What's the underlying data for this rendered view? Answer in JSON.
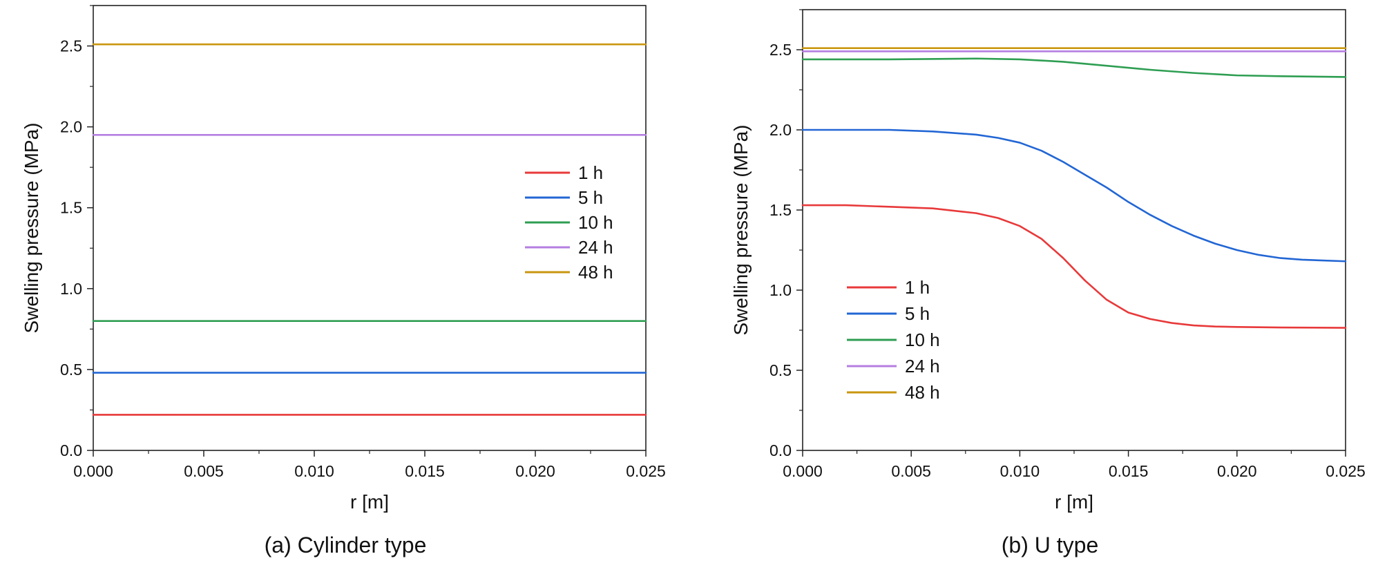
{
  "chart_data": [
    {
      "id": "a",
      "type": "line",
      "caption": "(a) Cylinder type",
      "xlabel": "r [m]",
      "ylabel": "Swelling pressure (MPa)",
      "xlim": [
        0.0,
        0.025
      ],
      "ylim": [
        0.0,
        2.75
      ],
      "xticks": [
        "0.000",
        "0.005",
        "0.010",
        "0.015",
        "0.020",
        "0.025"
      ],
      "yticks": [
        "0.0",
        "0.5",
        "1.0",
        "1.5",
        "2.0",
        "2.5"
      ],
      "legend_position": "center-right",
      "series": [
        {
          "name": "1 h",
          "color": "#e8393a",
          "x": [
            0.0,
            0.025
          ],
          "y": [
            0.22,
            0.22
          ]
        },
        {
          "name": "5 h",
          "color": "#2266d4",
          "x": [
            0.0,
            0.025
          ],
          "y": [
            0.48,
            0.48
          ]
        },
        {
          "name": "10 h",
          "color": "#2e9e52",
          "x": [
            0.0,
            0.025
          ],
          "y": [
            0.8,
            0.8
          ]
        },
        {
          "name": "24 h",
          "color": "#b57ee0",
          "x": [
            0.0,
            0.025
          ],
          "y": [
            1.95,
            1.95
          ]
        },
        {
          "name": "48 h",
          "color": "#c9960f",
          "x": [
            0.0,
            0.025
          ],
          "y": [
            2.51,
            2.51
          ]
        }
      ]
    },
    {
      "id": "b",
      "type": "line",
      "caption": "(b) U type",
      "xlabel": "r [m]",
      "ylabel": "Swelling pressure (MPa)",
      "xlim": [
        0.0,
        0.025
      ],
      "ylim": [
        0.0,
        2.75
      ],
      "xticks": [
        "0.000",
        "0.005",
        "0.010",
        "0.015",
        "0.020",
        "0.025"
      ],
      "yticks": [
        "0.0",
        "0.5",
        "1.0",
        "1.5",
        "2.0",
        "2.5"
      ],
      "legend_position": "bottom-left",
      "series": [
        {
          "name": "1 h",
          "color": "#e8393a",
          "x": [
            0.0,
            0.002,
            0.004,
            0.006,
            0.008,
            0.009,
            0.01,
            0.011,
            0.012,
            0.013,
            0.014,
            0.015,
            0.016,
            0.017,
            0.018,
            0.019,
            0.02,
            0.022,
            0.025
          ],
          "y": [
            1.53,
            1.53,
            1.52,
            1.51,
            1.48,
            1.45,
            1.4,
            1.32,
            1.2,
            1.06,
            0.94,
            0.86,
            0.82,
            0.795,
            0.78,
            0.773,
            0.77,
            0.767,
            0.765
          ]
        },
        {
          "name": "5 h",
          "color": "#2266d4",
          "x": [
            0.0,
            0.002,
            0.004,
            0.006,
            0.008,
            0.009,
            0.01,
            0.011,
            0.012,
            0.013,
            0.014,
            0.015,
            0.016,
            0.017,
            0.018,
            0.019,
            0.02,
            0.021,
            0.022,
            0.023,
            0.025
          ],
          "y": [
            2.0,
            2.0,
            2.0,
            1.99,
            1.97,
            1.95,
            1.92,
            1.87,
            1.8,
            1.72,
            1.64,
            1.55,
            1.47,
            1.4,
            1.34,
            1.29,
            1.25,
            1.22,
            1.2,
            1.19,
            1.18
          ]
        },
        {
          "name": "10 h",
          "color": "#2e9e52",
          "x": [
            0.0,
            0.004,
            0.008,
            0.01,
            0.012,
            0.014,
            0.016,
            0.018,
            0.02,
            0.022,
            0.025
          ],
          "y": [
            2.44,
            2.44,
            2.445,
            2.44,
            2.425,
            2.4,
            2.375,
            2.355,
            2.34,
            2.335,
            2.33
          ]
        },
        {
          "name": "24 h",
          "color": "#b57ee0",
          "x": [
            0.0,
            0.015,
            0.025
          ],
          "y": [
            2.49,
            2.49,
            2.49
          ]
        },
        {
          "name": "48 h",
          "color": "#c9960f",
          "x": [
            0.0,
            0.015,
            0.025
          ],
          "y": [
            2.51,
            2.51,
            2.51
          ]
        }
      ]
    }
  ]
}
